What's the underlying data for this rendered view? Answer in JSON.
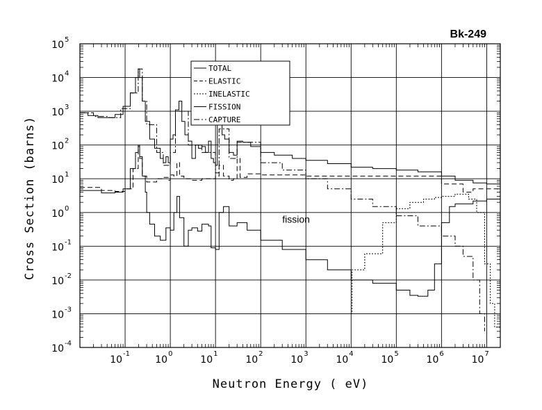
{
  "chart_data": {
    "type": "line",
    "title": "Bk-249",
    "xlabel": "Neutron Energy ( eV)",
    "ylabel": "Cross Section (barns)",
    "x_scale": "log",
    "y_scale": "log",
    "xlim": [
      0.01,
      20000000
    ],
    "ylim": [
      0.0001,
      100000
    ],
    "grid": true,
    "legend_position": "top-left",
    "x_ticks": [
      {
        "base": "10",
        "exp": "-1",
        "value": 0.1
      },
      {
        "base": "10",
        "exp": "0",
        "value": 1
      },
      {
        "base": "10",
        "exp": "1",
        "value": 10
      },
      {
        "base": "10",
        "exp": "2",
        "value": 100
      },
      {
        "base": "10",
        "exp": "3",
        "value": 1000
      },
      {
        "base": "10",
        "exp": "4",
        "value": 10000
      },
      {
        "base": "10",
        "exp": "5",
        "value": 100000
      },
      {
        "base": "10",
        "exp": "6",
        "value": 1000000
      },
      {
        "base": "10",
        "exp": "7",
        "value": 10000000
      }
    ],
    "y_ticks": [
      {
        "base": "10",
        "exp": "-4",
        "value": 0.0001
      },
      {
        "base": "10",
        "exp": "-3",
        "value": 0.001
      },
      {
        "base": "10",
        "exp": "-2",
        "value": 0.01
      },
      {
        "base": "10",
        "exp": "-1",
        "value": 0.1
      },
      {
        "base": "10",
        "exp": "0",
        "value": 1
      },
      {
        "base": "10",
        "exp": "1",
        "value": 10
      },
      {
        "base": "10",
        "exp": "2",
        "value": 100
      },
      {
        "base": "10",
        "exp": "3",
        "value": 1000
      },
      {
        "base": "10",
        "exp": "4",
        "value": 10000
      },
      {
        "base": "10",
        "exp": "5",
        "value": 100000
      }
    ],
    "annotations": [
      {
        "text": "fission",
        "x": 300,
        "y": 0.5
      }
    ],
    "series": [
      {
        "name": "TOTAL",
        "dash": "solid",
        "points": [
          [
            0.01,
            900
          ],
          [
            0.015,
            750
          ],
          [
            0.025,
            650
          ],
          [
            0.04,
            650
          ],
          [
            0.06,
            800
          ],
          [
            0.09,
            1400
          ],
          [
            0.13,
            3500
          ],
          [
            0.17,
            10000
          ],
          [
            0.195,
            18000
          ],
          [
            0.21,
            10000
          ],
          [
            0.24,
            2000
          ],
          [
            0.28,
            500
          ],
          [
            0.35,
            150
          ],
          [
            0.45,
            80
          ],
          [
            0.6,
            40
          ],
          [
            0.7,
            30
          ],
          [
            0.8,
            45
          ],
          [
            0.9,
            30
          ],
          [
            1.0,
            150
          ],
          [
            1.15,
            200
          ],
          [
            1.3,
            1100
          ],
          [
            1.55,
            2000
          ],
          [
            1.8,
            500
          ],
          [
            2.1,
            200
          ],
          [
            2.5,
            130
          ],
          [
            3.0,
            40
          ],
          [
            3.6,
            100
          ],
          [
            4.2,
            80
          ],
          [
            5.0,
            90
          ],
          [
            6.0,
            60
          ],
          [
            7.0,
            130
          ],
          [
            8.0,
            40
          ],
          [
            9.0,
            30
          ],
          [
            10.0,
            25
          ],
          [
            11,
            400
          ],
          [
            12,
            600
          ],
          [
            14,
            200
          ],
          [
            16,
            150
          ],
          [
            20,
            60
          ],
          [
            25,
            50
          ],
          [
            30,
            130
          ],
          [
            40,
            120
          ],
          [
            60,
            90
          ],
          [
            100,
            60
          ],
          [
            200,
            50
          ],
          [
            500,
            40
          ],
          [
            1000,
            35
          ],
          [
            3000,
            28
          ],
          [
            10000,
            22
          ],
          [
            30000,
            20
          ],
          [
            100000,
            18
          ],
          [
            300000,
            16
          ],
          [
            1000000,
            12
          ],
          [
            2000000,
            9
          ],
          [
            5000000,
            7.5
          ],
          [
            10000000,
            7
          ],
          [
            20000000,
            6
          ]
        ]
      },
      {
        "name": "ELASTIC",
        "dash": "dashed",
        "points": [
          [
            0.01,
            5.5
          ],
          [
            0.03,
            4.5
          ],
          [
            0.06,
            4.2
          ],
          [
            0.1,
            5
          ],
          [
            0.15,
            20
          ],
          [
            0.195,
            100
          ],
          [
            0.21,
            40
          ],
          [
            0.24,
            12
          ],
          [
            0.3,
            8
          ],
          [
            0.5,
            10
          ],
          [
            0.7,
            11
          ],
          [
            0.9,
            9
          ],
          [
            1.0,
            13
          ],
          [
            1.2,
            12
          ],
          [
            1.4,
            30
          ],
          [
            1.6,
            12
          ],
          [
            2,
            10
          ],
          [
            3,
            9
          ],
          [
            5,
            10
          ],
          [
            8,
            10
          ],
          [
            10,
            12
          ],
          [
            12,
            25
          ],
          [
            15,
            12
          ],
          [
            20,
            9
          ],
          [
            25,
            10
          ],
          [
            30,
            40
          ],
          [
            35,
            11
          ],
          [
            50,
            14
          ],
          [
            100,
            13
          ],
          [
            1000,
            12
          ],
          [
            10000,
            12
          ],
          [
            100000,
            12
          ],
          [
            1000000,
            7
          ],
          [
            3000000,
            4
          ],
          [
            5000000,
            5
          ],
          [
            10000000,
            5
          ],
          [
            20000000,
            5
          ]
        ]
      },
      {
        "name": "INELASTIC",
        "dash": "dotted",
        "points": [
          [
            10000,
            0.001
          ],
          [
            10500,
            0.02
          ],
          [
            20000,
            0.06
          ],
          [
            50000,
            0.5
          ],
          [
            100000,
            1.3
          ],
          [
            200000,
            2
          ],
          [
            400000,
            2.5
          ],
          [
            700000,
            2.8
          ],
          [
            1000000,
            3
          ],
          [
            2000000,
            3.5
          ],
          [
            4000000,
            2.5
          ],
          [
            6000000,
            1
          ],
          [
            9000000,
            0.03
          ],
          [
            12000000,
            0.002
          ],
          [
            15000000,
            0.0004
          ],
          [
            20000000,
            0.0001
          ]
        ]
      },
      {
        "name": "FISSION",
        "dash": "solid",
        "points": [
          [
            0.01,
            4.5
          ],
          [
            0.03,
            3.8
          ],
          [
            0.06,
            4
          ],
          [
            0.09,
            5
          ],
          [
            0.13,
            20
          ],
          [
            0.17,
            60
          ],
          [
            0.195,
            90
          ],
          [
            0.21,
            45
          ],
          [
            0.24,
            12
          ],
          [
            0.28,
            4
          ],
          [
            0.3,
            1
          ],
          [
            0.35,
            0.45
          ],
          [
            0.45,
            0.2
          ],
          [
            0.6,
            0.15
          ],
          [
            0.8,
            0.35
          ],
          [
            1.0,
            0.3
          ],
          [
            1.2,
            1
          ],
          [
            1.4,
            3
          ],
          [
            1.6,
            0.7
          ],
          [
            2,
            0.1
          ],
          [
            2.5,
            0.3
          ],
          [
            3,
            0.35
          ],
          [
            4,
            0.28
          ],
          [
            5,
            0.45
          ],
          [
            7,
            0.4
          ],
          [
            8,
            0.09
          ],
          [
            10,
            0.08
          ],
          [
            12,
            1
          ],
          [
            15,
            1.5
          ],
          [
            20,
            0.4
          ],
          [
            30,
            0.5
          ],
          [
            50,
            0.3
          ],
          [
            100,
            0.15
          ],
          [
            300,
            0.08
          ],
          [
            1000,
            0.04
          ],
          [
            3000,
            0.02
          ],
          [
            10000,
            0.01
          ],
          [
            30000,
            0.008
          ],
          [
            100000,
            0.005
          ],
          [
            200000,
            0.0035
          ],
          [
            300000,
            0.0033
          ],
          [
            500000,
            0.005
          ],
          [
            700000,
            0.03
          ],
          [
            1000000,
            0.5
          ],
          [
            1500000,
            1.5
          ],
          [
            2000000,
            1.8
          ],
          [
            5000000,
            2.2
          ],
          [
            10000000,
            2.5
          ],
          [
            20000000,
            2.5
          ]
        ]
      },
      {
        "name": "CAPTURE",
        "dash": "dashdot",
        "points": [
          [
            0.01,
            900
          ],
          [
            0.02,
            700
          ],
          [
            0.04,
            650
          ],
          [
            0.08,
            1200
          ],
          [
            0.13,
            3500
          ],
          [
            0.195,
            18000
          ],
          [
            0.24,
            2000
          ],
          [
            0.3,
            400
          ],
          [
            0.5,
            60
          ],
          [
            0.7,
            25
          ],
          [
            1.0,
            60
          ],
          [
            1.3,
            1000
          ],
          [
            1.6,
            1000
          ],
          [
            2.5,
            100
          ],
          [
            5,
            60
          ],
          [
            10,
            15
          ],
          [
            12,
            300
          ],
          [
            20,
            40
          ],
          [
            30,
            120
          ],
          [
            100,
            30
          ],
          [
            300,
            18
          ],
          [
            1000,
            10
          ],
          [
            3000,
            5
          ],
          [
            10000,
            2.5
          ],
          [
            30000,
            1.5
          ],
          [
            100000,
            0.8
          ],
          [
            300000,
            0.4
          ],
          [
            1000000,
            0.2
          ],
          [
            2000000,
            0.1
          ],
          [
            3000000,
            0.05
          ],
          [
            5000000,
            0.01
          ],
          [
            7000000,
            0.001
          ],
          [
            9000000,
            0.0003
          ]
        ]
      }
    ]
  }
}
